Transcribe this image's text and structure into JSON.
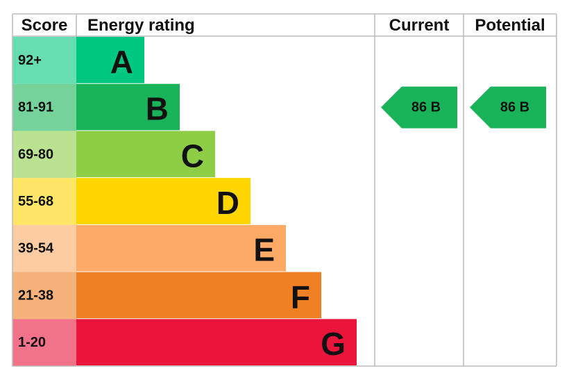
{
  "chart_data": {
    "type": "epc",
    "headers": [
      "Score",
      "Energy rating",
      "Current",
      "Potential"
    ],
    "bands": [
      {
        "score": "92+",
        "rating": "A",
        "color": "#00c781"
      },
      {
        "score": "81-91",
        "rating": "B",
        "color": "#19b459"
      },
      {
        "score": "69-80",
        "rating": "C",
        "color": "#8dce46"
      },
      {
        "score": "55-68",
        "rating": "D",
        "color": "#ffd500"
      },
      {
        "score": "39-54",
        "rating": "E",
        "color": "#fcaa65"
      },
      {
        "score": "21-38",
        "rating": "F",
        "color": "#ef8023"
      },
      {
        "score": "1-20",
        "rating": "G",
        "color": "#e9153b"
      }
    ],
    "current": {
      "value": 86,
      "label": "86 B"
    },
    "potential": {
      "value": 86,
      "label": "86 B"
    }
  }
}
